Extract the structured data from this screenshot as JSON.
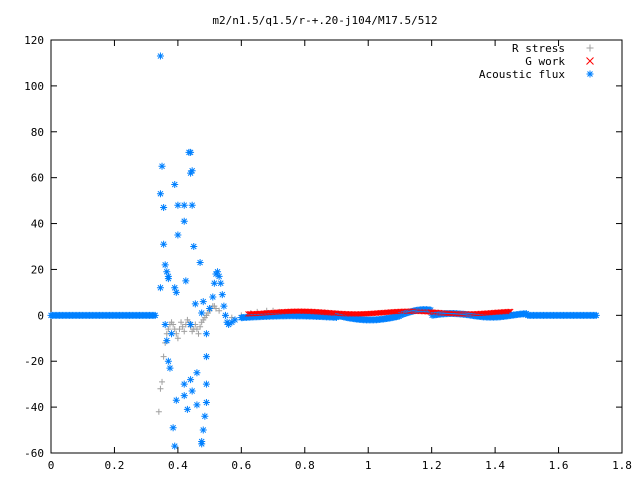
{
  "chart_data": {
    "type": "scatter",
    "title": "m2/n1.5/q1.5/r-+.20-j104/M17.5/512",
    "xlabel": "",
    "ylabel": "",
    "xlim": [
      0,
      1.8
    ],
    "ylim": [
      -60,
      120
    ],
    "x_ticks": [
      0,
      0.2,
      0.4,
      0.6,
      0.8,
      1,
      1.2,
      1.4,
      1.6,
      1.8
    ],
    "x_tick_labels": [
      "0",
      "0.2",
      "0.4",
      "0.6",
      "0.8",
      "1",
      "1.2",
      "1.4",
      "1.6",
      "1.8"
    ],
    "y_ticks": [
      -60,
      -40,
      -20,
      0,
      20,
      40,
      60,
      80,
      100,
      120
    ],
    "y_tick_labels": [
      "-60",
      "-40",
      "-20",
      "0",
      "20",
      "40",
      "60",
      "80",
      "100",
      "120"
    ],
    "grid": false,
    "legend_position": "top-right",
    "series": [
      {
        "name": "R stress",
        "marker": "plus",
        "color": "#a0a0a0",
        "points": [
          [
            0.34,
            -42
          ],
          [
            0.345,
            -32
          ],
          [
            0.35,
            -29
          ],
          [
            0.355,
            -18
          ],
          [
            0.36,
            -12
          ],
          [
            0.365,
            -8
          ],
          [
            0.37,
            -6
          ],
          [
            0.375,
            -4
          ],
          [
            0.38,
            -3
          ],
          [
            0.385,
            -4
          ],
          [
            0.39,
            -6
          ],
          [
            0.395,
            -8
          ],
          [
            0.4,
            -10
          ],
          [
            0.405,
            -6
          ],
          [
            0.41,
            -3
          ],
          [
            0.415,
            -5
          ],
          [
            0.42,
            -7
          ],
          [
            0.425,
            -4
          ],
          [
            0.43,
            -2
          ],
          [
            0.435,
            -3
          ],
          [
            0.44,
            -5
          ],
          [
            0.445,
            -7
          ],
          [
            0.45,
            -6
          ],
          [
            0.455,
            -4
          ],
          [
            0.46,
            -6
          ],
          [
            0.465,
            -8
          ],
          [
            0.47,
            -5
          ],
          [
            0.475,
            -3
          ],
          [
            0.48,
            -2
          ],
          [
            0.485,
            -1
          ],
          [
            0.49,
            0
          ],
          [
            0.495,
            1
          ],
          [
            0.5,
            2
          ],
          [
            0.505,
            3
          ],
          [
            0.51,
            4
          ],
          [
            0.515,
            4
          ],
          [
            0.52,
            3
          ],
          [
            0.53,
            2
          ],
          [
            0.55,
            0
          ],
          [
            0.57,
            -1
          ],
          [
            0.6,
            0
          ],
          [
            0.63,
            1
          ],
          [
            0.65,
            1.5
          ],
          [
            0.68,
            2
          ],
          [
            0.7,
            2
          ],
          [
            0.72,
            1.5
          ],
          [
            0.75,
            1
          ]
        ]
      },
      {
        "name": "G work",
        "marker": "cross",
        "color": "#ff0000",
        "points": []
      },
      {
        "name": "Acoustic flux",
        "marker": "star",
        "color": "#0080ff",
        "points": [
          [
            0.345,
            113
          ],
          [
            0.35,
            65
          ],
          [
            0.345,
            53
          ],
          [
            0.355,
            47
          ],
          [
            0.355,
            31
          ],
          [
            0.36,
            22
          ],
          [
            0.365,
            19
          ],
          [
            0.345,
            12
          ],
          [
            0.37,
            17
          ],
          [
            0.37,
            16
          ],
          [
            0.39,
            12
          ],
          [
            0.395,
            10
          ],
          [
            0.39,
            57
          ],
          [
            0.4,
            48
          ],
          [
            0.4,
            35
          ],
          [
            0.42,
            48
          ],
          [
            0.42,
            41
          ],
          [
            0.425,
            15
          ],
          [
            0.435,
            71
          ],
          [
            0.44,
            71
          ],
          [
            0.44,
            62
          ],
          [
            0.445,
            63
          ],
          [
            0.445,
            48
          ],
          [
            0.45,
            30
          ],
          [
            0.44,
            -4
          ],
          [
            0.455,
            5
          ],
          [
            0.47,
            23
          ],
          [
            0.475,
            1
          ],
          [
            0.48,
            6
          ],
          [
            0.49,
            -8
          ],
          [
            0.49,
            -18
          ],
          [
            0.49,
            -30
          ],
          [
            0.49,
            -38
          ],
          [
            0.485,
            -44
          ],
          [
            0.48,
            -50
          ],
          [
            0.475,
            -55
          ],
          [
            0.475,
            -56
          ],
          [
            0.46,
            -25
          ],
          [
            0.46,
            -39
          ],
          [
            0.445,
            -33
          ],
          [
            0.44,
            -28
          ],
          [
            0.43,
            -41
          ],
          [
            0.42,
            -30
          ],
          [
            0.42,
            -35
          ],
          [
            0.395,
            -37
          ],
          [
            0.385,
            -49
          ],
          [
            0.39,
            -57
          ],
          [
            0.375,
            -23
          ],
          [
            0.37,
            -20
          ],
          [
            0.365,
            -11
          ],
          [
            0.38,
            -8
          ],
          [
            0.36,
            -4
          ],
          [
            0.5,
            3
          ],
          [
            0.51,
            8
          ],
          [
            0.515,
            14
          ],
          [
            0.52,
            18
          ],
          [
            0.525,
            19
          ],
          [
            0.53,
            17
          ],
          [
            0.535,
            14
          ],
          [
            0.54,
            9
          ],
          [
            0.545,
            4
          ],
          [
            0.55,
            0
          ],
          [
            0.555,
            -3
          ],
          [
            0.56,
            -4
          ],
          [
            0.57,
            -3
          ],
          [
            0.58,
            -2
          ],
          [
            0.6,
            -1
          ]
        ]
      }
    ]
  }
}
